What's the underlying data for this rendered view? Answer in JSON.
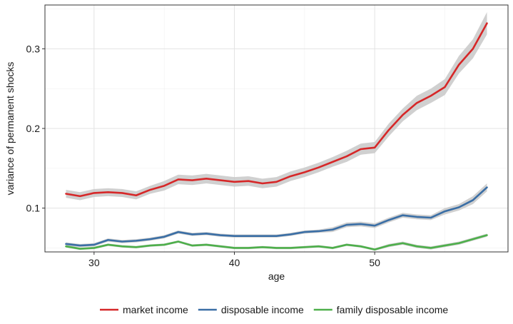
{
  "chart_data": {
    "type": "line",
    "title": "",
    "xlabel": "age",
    "ylabel": "variance of permanent shocks",
    "xlim": [
      26.5,
      59.5
    ],
    "ylim": [
      0.045,
      0.355
    ],
    "xticks": [
      30,
      40,
      50
    ],
    "yticks": [
      0.1,
      0.2,
      0.3
    ],
    "xtick_labels": [
      "30",
      "40",
      "50"
    ],
    "ytick_labels": [
      "0.1",
      "0.2",
      "0.3"
    ],
    "grid": true,
    "legend_position": "bottom",
    "confidence_band": true,
    "band_color": "#c8c8c8",
    "x": [
      28,
      29,
      30,
      31,
      32,
      33,
      34,
      35,
      36,
      37,
      38,
      39,
      40,
      41,
      42,
      43,
      44,
      45,
      46,
      47,
      48,
      49,
      50,
      51,
      52,
      53,
      54,
      55,
      56,
      57,
      58
    ],
    "series": [
      {
        "name": "market income",
        "color": "#d62728",
        "values": [
          0.118,
          0.115,
          0.119,
          0.12,
          0.119,
          0.116,
          0.123,
          0.128,
          0.136,
          0.135,
          0.137,
          0.135,
          0.133,
          0.134,
          0.131,
          0.133,
          0.14,
          0.145,
          0.151,
          0.158,
          0.165,
          0.174,
          0.176,
          0.198,
          0.217,
          0.232,
          0.241,
          0.252,
          0.28,
          0.3,
          0.332
        ],
        "band": [
          0.005,
          0.005,
          0.005,
          0.005,
          0.005,
          0.005,
          0.005,
          0.006,
          0.006,
          0.006,
          0.006,
          0.006,
          0.006,
          0.006,
          0.006,
          0.006,
          0.006,
          0.006,
          0.006,
          0.006,
          0.007,
          0.007,
          0.007,
          0.008,
          0.008,
          0.009,
          0.009,
          0.01,
          0.011,
          0.012,
          0.014
        ]
      },
      {
        "name": "disposable income",
        "color": "#3a6ea5",
        "values": [
          0.055,
          0.053,
          0.054,
          0.06,
          0.058,
          0.059,
          0.061,
          0.064,
          0.07,
          0.067,
          0.068,
          0.066,
          0.065,
          0.065,
          0.065,
          0.065,
          0.067,
          0.07,
          0.071,
          0.073,
          0.079,
          0.08,
          0.078,
          0.085,
          0.091,
          0.089,
          0.088,
          0.096,
          0.101,
          0.11,
          0.126
        ],
        "band": [
          0.002,
          0.002,
          0.002,
          0.002,
          0.002,
          0.002,
          0.002,
          0.002,
          0.002,
          0.002,
          0.002,
          0.002,
          0.002,
          0.002,
          0.002,
          0.002,
          0.002,
          0.002,
          0.002,
          0.003,
          0.003,
          0.003,
          0.003,
          0.003,
          0.003,
          0.003,
          0.003,
          0.004,
          0.004,
          0.005,
          0.005
        ]
      },
      {
        "name": "family disposable income",
        "color": "#4daf4a",
        "values": [
          0.052,
          0.049,
          0.05,
          0.054,
          0.052,
          0.051,
          0.053,
          0.054,
          0.058,
          0.053,
          0.054,
          0.052,
          0.05,
          0.05,
          0.051,
          0.05,
          0.05,
          0.051,
          0.052,
          0.05,
          0.054,
          0.052,
          0.048,
          0.053,
          0.056,
          0.052,
          0.05,
          0.053,
          0.056,
          0.061,
          0.066
        ],
        "band": [
          0.0015,
          0.0015,
          0.0015,
          0.0015,
          0.0015,
          0.0015,
          0.0015,
          0.0015,
          0.0015,
          0.0015,
          0.0015,
          0.0015,
          0.0015,
          0.0015,
          0.0015,
          0.0015,
          0.0015,
          0.0015,
          0.0015,
          0.0015,
          0.0015,
          0.0015,
          0.0015,
          0.002,
          0.002,
          0.002,
          0.002,
          0.002,
          0.002,
          0.002,
          0.002
        ]
      }
    ]
  }
}
